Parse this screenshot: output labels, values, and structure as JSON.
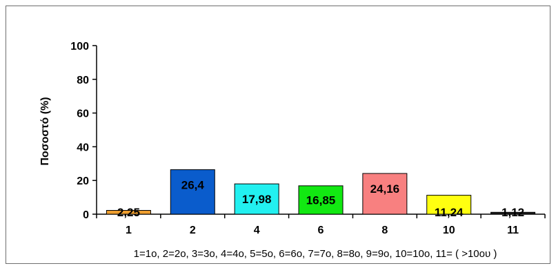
{
  "chart_data": {
    "type": "bar",
    "title": "",
    "xlabel": "",
    "ylabel": "Ποσοστό (%)",
    "ylim": [
      0,
      100
    ],
    "yticks": [
      0,
      20,
      40,
      60,
      80,
      100
    ],
    "grid": false,
    "legend": "none",
    "categories": [
      "1",
      "2",
      "4",
      "6",
      "8",
      "10",
      "11"
    ],
    "values": [
      2.25,
      26.4,
      17.98,
      16.85,
      24.16,
      11.24,
      1.12
    ],
    "value_labels": [
      "2,25",
      "26,4",
      "17,98",
      "16,85",
      "24,16",
      "11,24",
      "1,12"
    ],
    "colors": [
      "#f0a030",
      "#0a5ccc",
      "#22f0f0",
      "#12e812",
      "#f88080",
      "#ffff10",
      "#1c1c1c"
    ],
    "annotation": "1=1ο, 2=2ο, 3=3ο, 4=4ο, 5=5ο, 6=6ο, 7=7ο, 8=8ο, 9=9ο, 10=10ο, 11= ( >10ου )"
  }
}
